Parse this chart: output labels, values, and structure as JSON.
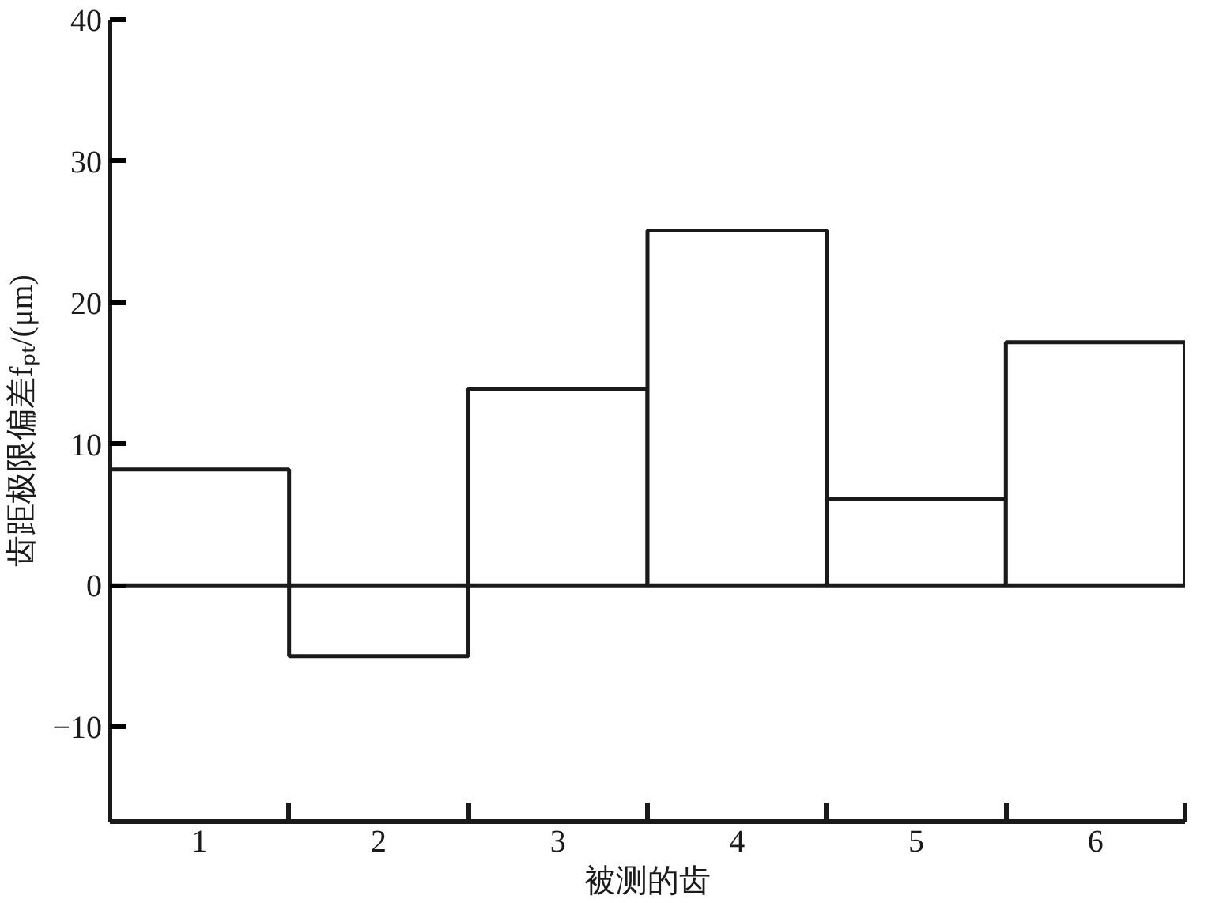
{
  "chart_data": {
    "type": "bar",
    "xlabel": "被测的齿",
    "ylabel": "齿距极限偏差fₚₜ/(μm)",
    "categories": [
      "1",
      "2",
      "3",
      "4",
      "5",
      "6"
    ],
    "values": [
      8.2,
      -5.0,
      13.9,
      25.1,
      6.1,
      17.2
    ],
    "color": "#ffffff",
    "ylim": [
      -16.7,
      40
    ],
    "yticks": [
      -10,
      0,
      10,
      20,
      30,
      40
    ],
    "grid": false
  }
}
